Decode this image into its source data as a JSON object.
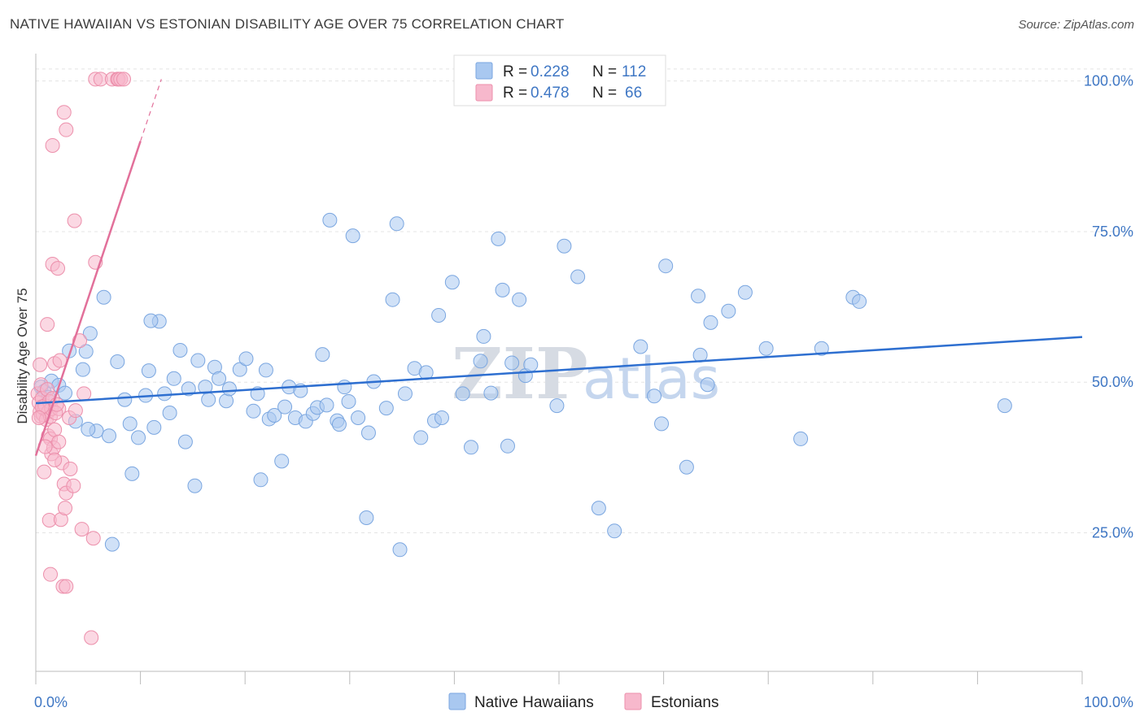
{
  "header": {
    "title": "NATIVE HAWAIIAN VS ESTONIAN DISABILITY AGE OVER 75 CORRELATION CHART",
    "source": "Source: ZipAtlas.com"
  },
  "legend": {
    "rows": [
      {
        "r_label": "R = ",
        "r_value": "0.228",
        "n_label": "N = ",
        "n_value": "112",
        "color": "#a9c8f0"
      },
      {
        "r_label": "R = ",
        "r_value": "0.478",
        "n_label": "N = ",
        "n_value": "66",
        "color": "#f7b8cc"
      }
    ]
  },
  "bottom_legend": [
    "Native Hawaiians",
    "Estonians"
  ],
  "watermark": {
    "zip": "ZIP",
    "atlas": "atlas"
  },
  "chart_data": {
    "type": "scatter",
    "title": "NATIVE HAWAIIAN VS ESTONIAN DISABILITY AGE OVER 75 CORRELATION CHART",
    "xlabel": "",
    "ylabel": "Disability Age Over 75",
    "xlim": [
      0,
      100
    ],
    "ylim": [
      2,
      104
    ],
    "x_tick_labels": [
      "0.0%",
      "100.0%"
    ],
    "y_ticks": [
      25,
      50,
      75,
      100
    ],
    "y_tick_labels": [
      "25.0%",
      "50.0%",
      "75.0%",
      "100.0%"
    ],
    "grid": "horizontal dashed",
    "legend_position": "top-center",
    "series": [
      {
        "name": "Native Hawaiians",
        "color": "#a9c8f0",
        "stroke": "#7aa6e0",
        "trend": {
          "x0": 0,
          "y0": 46.5,
          "x1": 100,
          "y1": 57.5,
          "color": "#2e6fd0"
        },
        "points": [
          [
            0.5,
            49.2
          ],
          [
            0.8,
            48.5
          ],
          [
            1.2,
            47.5
          ],
          [
            1.5,
            50.2
          ],
          [
            2.2,
            49.5
          ],
          [
            2.8,
            48.2
          ],
          [
            3.2,
            55.2
          ],
          [
            3.8,
            43.5
          ],
          [
            4.5,
            52.1
          ],
          [
            4.8,
            55.1
          ],
          [
            5.2,
            58.1
          ],
          [
            5.8,
            41.9
          ],
          [
            6.5,
            64.1
          ],
          [
            7.0,
            41.1
          ],
          [
            7.3,
            23.1
          ],
          [
            7.8,
            53.4
          ],
          [
            8.5,
            47.1
          ],
          [
            9.0,
            43.1
          ],
          [
            9.2,
            34.8
          ],
          [
            9.8,
            40.8
          ],
          [
            10.5,
            47.8
          ],
          [
            10.8,
            51.9
          ],
          [
            11.3,
            42.5
          ],
          [
            11.8,
            60.1
          ],
          [
            12.3,
            48.1
          ],
          [
            12.8,
            44.9
          ],
          [
            13.2,
            50.6
          ],
          [
            13.8,
            55.3
          ],
          [
            14.3,
            40.1
          ],
          [
            14.6,
            48.9
          ],
          [
            15.2,
            32.8
          ],
          [
            15.5,
            53.6
          ],
          [
            16.2,
            49.2
          ],
          [
            16.5,
            47.1
          ],
          [
            17.1,
            52.5
          ],
          [
            17.5,
            50.6
          ],
          [
            18.2,
            46.9
          ],
          [
            18.5,
            48.9
          ],
          [
            19.5,
            52.1
          ],
          [
            20.1,
            53.9
          ],
          [
            20.8,
            45.2
          ],
          [
            21.2,
            48.1
          ],
          [
            21.5,
            33.8
          ],
          [
            22.3,
            43.9
          ],
          [
            22.8,
            44.5
          ],
          [
            23.5,
            36.9
          ],
          [
            23.8,
            45.9
          ],
          [
            24.2,
            49.2
          ],
          [
            24.8,
            44.1
          ],
          [
            25.3,
            48.6
          ],
          [
            25.8,
            43.5
          ],
          [
            26.5,
            44.8
          ],
          [
            26.9,
            45.8
          ],
          [
            27.4,
            54.6
          ],
          [
            27.8,
            46.2
          ],
          [
            28.1,
            76.9
          ],
          [
            28.8,
            43.6
          ],
          [
            29.5,
            49.2
          ],
          [
            29.9,
            46.8
          ],
          [
            30.3,
            74.3
          ],
          [
            30.8,
            44.1
          ],
          [
            31.6,
            27.5
          ],
          [
            31.8,
            41.6
          ],
          [
            32.3,
            50.1
          ],
          [
            33.5,
            45.7
          ],
          [
            34.1,
            63.7
          ],
          [
            34.5,
            76.3
          ],
          [
            34.8,
            22.2
          ],
          [
            35.3,
            48.1
          ],
          [
            36.2,
            52.3
          ],
          [
            36.8,
            40.8
          ],
          [
            37.3,
            51.6
          ],
          [
            38.1,
            43.6
          ],
          [
            38.8,
            44.1
          ],
          [
            38.5,
            61.1
          ],
          [
            39.8,
            66.6
          ],
          [
            40.8,
            48.1
          ],
          [
            41.6,
            39.2
          ],
          [
            42.5,
            53.5
          ],
          [
            42.8,
            57.6
          ],
          [
            43.5,
            48.2
          ],
          [
            44.2,
            73.8
          ],
          [
            44.6,
            65.3
          ],
          [
            45.1,
            39.4
          ],
          [
            45.5,
            53.2
          ],
          [
            46.2,
            63.7
          ],
          [
            46.8,
            51.1
          ],
          [
            47.3,
            52.9
          ],
          [
            49.8,
            46.1
          ],
          [
            50.5,
            72.6
          ],
          [
            51.8,
            67.5
          ],
          [
            53.8,
            29.1
          ],
          [
            55.3,
            25.3
          ],
          [
            57.8,
            55.9
          ],
          [
            59.1,
            47.7
          ],
          [
            60.2,
            69.3
          ],
          [
            59.8,
            43.1
          ],
          [
            62.2,
            35.9
          ],
          [
            63.3,
            64.3
          ],
          [
            63.5,
            54.5
          ],
          [
            64.5,
            59.9
          ],
          [
            64.2,
            49.6
          ],
          [
            66.2,
            61.8
          ],
          [
            67.8,
            64.9
          ],
          [
            69.8,
            55.6
          ],
          [
            73.1,
            40.6
          ],
          [
            75.1,
            55.6
          ],
          [
            78.1,
            64.1
          ],
          [
            78.7,
            63.4
          ],
          [
            92.6,
            46.1
          ],
          [
            11.0,
            60.2
          ],
          [
            5.0,
            42.2
          ],
          [
            29.0,
            43.0
          ],
          [
            22.0,
            52.0
          ]
        ]
      },
      {
        "name": "Estonians",
        "color": "#f7b8cc",
        "stroke": "#ec8fab",
        "trend": {
          "x0": 0,
          "y0": 37.8,
          "x1": 10,
          "y1": 90.0,
          "x_ext": 12,
          "y_ext": 100.3,
          "color": "#e2709a"
        },
        "points": [
          [
            0.2,
            48.1
          ],
          [
            0.3,
            46.6
          ],
          [
            0.4,
            45.1
          ],
          [
            0.5,
            44.3
          ],
          [
            0.6,
            47.3
          ],
          [
            0.4,
            52.9
          ],
          [
            0.5,
            49.6
          ],
          [
            0.7,
            44.6
          ],
          [
            0.8,
            45.6
          ],
          [
            0.9,
            46.1
          ],
          [
            1.0,
            43.8
          ],
          [
            1.1,
            48.8
          ],
          [
            1.2,
            45.1
          ],
          [
            1.3,
            46.8
          ],
          [
            1.4,
            44.3
          ],
          [
            1.5,
            45.6
          ],
          [
            1.6,
            47.3
          ],
          [
            1.8,
            53.1
          ],
          [
            1.1,
            59.6
          ],
          [
            0.8,
            35.1
          ],
          [
            1.2,
            41.1
          ],
          [
            1.5,
            38.1
          ],
          [
            1.4,
            40.6
          ],
          [
            1.8,
            42.1
          ],
          [
            1.7,
            39.1
          ],
          [
            2.2,
            45.6
          ],
          [
            2.3,
            53.6
          ],
          [
            2.5,
            36.6
          ],
          [
            1.3,
            27.1
          ],
          [
            2.4,
            27.2
          ],
          [
            2.7,
            33.1
          ],
          [
            2.8,
            29.1
          ],
          [
            2.9,
            31.6
          ],
          [
            2.2,
            40.1
          ],
          [
            3.2,
            44.1
          ],
          [
            3.3,
            35.6
          ],
          [
            3.6,
            32.8
          ],
          [
            3.8,
            45.3
          ],
          [
            4.2,
            56.9
          ],
          [
            4.4,
            25.6
          ],
          [
            4.6,
            48.1
          ],
          [
            5.5,
            24.1
          ],
          [
            1.4,
            18.1
          ],
          [
            2.6,
            16.1
          ],
          [
            2.9,
            16.1
          ],
          [
            5.3,
            7.6
          ],
          [
            1.6,
            69.6
          ],
          [
            2.1,
            68.9
          ],
          [
            3.7,
            76.8
          ],
          [
            5.7,
            69.9
          ],
          [
            1.6,
            89.3
          ],
          [
            2.7,
            94.8
          ],
          [
            2.9,
            91.9
          ],
          [
            5.7,
            100.3
          ],
          [
            6.2,
            100.3
          ],
          [
            7.3,
            100.3
          ],
          [
            7.8,
            100.3
          ],
          [
            7.9,
            100.3
          ],
          [
            8.1,
            100.3
          ],
          [
            8.4,
            100.3
          ],
          [
            0.9,
            39.3
          ],
          [
            1.8,
            37.1
          ],
          [
            0.6,
            45.9
          ],
          [
            1.9,
            44.9
          ],
          [
            0.3,
            44.1
          ],
          [
            2.0,
            46.3
          ]
        ]
      }
    ]
  }
}
